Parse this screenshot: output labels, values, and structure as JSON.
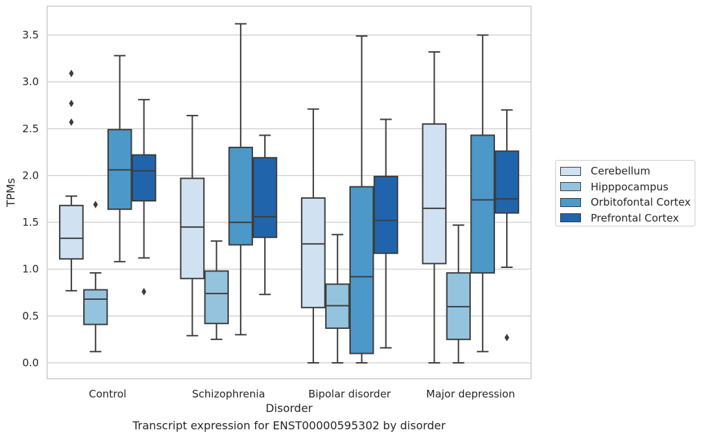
{
  "chart_data": {
    "type": "box",
    "title": "Transcript expression for ENST00000595302 by disorder",
    "xlabel": "Disorder",
    "ylabel": "TPMs",
    "ylim": [
      -0.17,
      3.79
    ],
    "yticks": [
      "0.0",
      "0.5",
      "1.0",
      "1.5",
      "2.0",
      "2.5",
      "3.0",
      "3.5"
    ],
    "categories": [
      "Control",
      "Schizophrenia",
      "Bipolar disorder",
      "Major depression"
    ],
    "grid": "horizontal",
    "legend_position": "right",
    "series": [
      {
        "name": "Cerebellum",
        "color": "#d0e1f1",
        "boxes": [
          {
            "whislo": 0.77,
            "q1": 1.11,
            "med": 1.33,
            "q3": 1.68,
            "whishi": 1.78,
            "fliers": [
              2.57,
              2.77,
              3.09
            ]
          },
          {
            "whislo": 0.29,
            "q1": 0.9,
            "med": 1.45,
            "q3": 1.97,
            "whishi": 2.64,
            "fliers": []
          },
          {
            "whislo": 0.0,
            "q1": 0.59,
            "med": 1.27,
            "q3": 1.76,
            "whishi": 2.71,
            "fliers": []
          },
          {
            "whislo": 0.0,
            "q1": 1.06,
            "med": 1.65,
            "q3": 2.55,
            "whishi": 3.32,
            "fliers": []
          }
        ]
      },
      {
        "name": "Hipppocampus",
        "color": "#94c3de",
        "boxes": [
          {
            "whislo": 0.12,
            "q1": 0.41,
            "med": 0.68,
            "q3": 0.78,
            "whishi": 0.96,
            "fliers": [
              1.69
            ]
          },
          {
            "whislo": 0.25,
            "q1": 0.42,
            "med": 0.74,
            "q3": 0.98,
            "whishi": 1.3,
            "fliers": []
          },
          {
            "whislo": 0.0,
            "q1": 0.37,
            "med": 0.61,
            "q3": 0.84,
            "whishi": 1.37,
            "fliers": []
          },
          {
            "whislo": 0.0,
            "q1": 0.25,
            "med": 0.6,
            "q3": 0.96,
            "whishi": 1.47,
            "fliers": []
          }
        ]
      },
      {
        "name": "Orbitofontal Cortex",
        "color": "#4b98c9",
        "boxes": [
          {
            "whislo": 1.08,
            "q1": 1.64,
            "med": 2.06,
            "q3": 2.49,
            "whishi": 3.28,
            "fliers": []
          },
          {
            "whislo": 0.3,
            "q1": 1.26,
            "med": 1.5,
            "q3": 2.3,
            "whishi": 3.62,
            "fliers": []
          },
          {
            "whislo": 0.0,
            "q1": 0.1,
            "med": 0.92,
            "q3": 1.88,
            "whishi": 3.49,
            "fliers": []
          },
          {
            "whislo": 0.12,
            "q1": 0.96,
            "med": 1.74,
            "q3": 2.43,
            "whishi": 3.5,
            "fliers": []
          }
        ]
      },
      {
        "name": "Prefrontal Cortex",
        "color": "#2065ab",
        "boxes": [
          {
            "whislo": 1.12,
            "q1": 1.73,
            "med": 2.05,
            "q3": 2.22,
            "whishi": 2.81,
            "fliers": [
              0.76
            ]
          },
          {
            "whislo": 0.73,
            "q1": 1.34,
            "med": 1.56,
            "q3": 2.19,
            "whishi": 2.43,
            "fliers": []
          },
          {
            "whislo": 0.16,
            "q1": 1.17,
            "med": 1.52,
            "q3": 1.99,
            "whishi": 2.6,
            "fliers": []
          },
          {
            "whislo": 1.02,
            "q1": 1.6,
            "med": 1.75,
            "q3": 2.26,
            "whishi": 2.7,
            "fliers": [
              0.27
            ]
          }
        ]
      }
    ]
  }
}
